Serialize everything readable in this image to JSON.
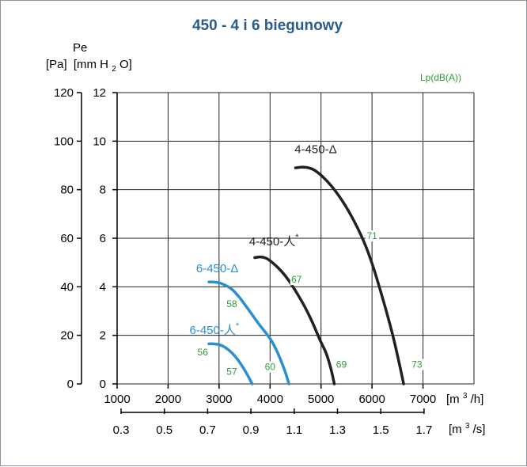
{
  "chart_data": {
    "type": "line",
    "title": "450 - 4 i 6 biegunowy",
    "y_axis_name": "Pe",
    "y_axis_units_pa": "[Pa]",
    "y_axis_units_mmh2o": "[mm H",
    "y_axis_units_mmh2o_sub": "2",
    "y_axis_units_mmh2o_end": "O]",
    "y_ticks_pa": [
      "0",
      "20",
      "40",
      "60",
      "80",
      "100",
      "120"
    ],
    "y_ticks_mm": [
      "0",
      "2",
      "4",
      "6",
      "8",
      "10",
      "12"
    ],
    "ylim_pa": [
      0,
      120
    ],
    "x_ticks_m3h": [
      "1000",
      "2000",
      "3000",
      "4000",
      "5000",
      "6000",
      "7000"
    ],
    "xlim_m3h": [
      1000,
      8000
    ],
    "x_unit_m3h": "[m",
    "x_unit_m3h_sup": "3",
    "x_unit_m3h_end": "/h]",
    "x_ticks_m3s": [
      "0.3",
      "0.5",
      "0.7",
      "0.9",
      "1.1",
      "1.3",
      "1.5",
      "1.7"
    ],
    "x_unit_m3s": "[m",
    "x_unit_m3s_sup": "3",
    "x_unit_m3s_end": "/s]",
    "lp_label": "Lp(dB(A))",
    "grid": true,
    "series": [
      {
        "name": "4-450-Δ",
        "color": "#231f20",
        "points": [
          [
            4500,
            89
          ],
          [
            4700,
            89.5
          ],
          [
            4900,
            88
          ],
          [
            5200,
            82
          ],
          [
            5500,
            73
          ],
          [
            5800,
            61
          ],
          [
            6000,
            50
          ],
          [
            6200,
            36
          ],
          [
            6400,
            21
          ],
          [
            6550,
            7
          ],
          [
            6620,
            0
          ]
        ],
        "label_x": 4480,
        "label_y": 95,
        "superscript": ""
      },
      {
        "name": "4-450-人",
        "color": "#231f20",
        "points": [
          [
            3700,
            52
          ],
          [
            3850,
            52.5
          ],
          [
            4000,
            51
          ],
          [
            4300,
            45
          ],
          [
            4600,
            35
          ],
          [
            4800,
            27
          ],
          [
            5000,
            17
          ],
          [
            5100,
            13
          ],
          [
            5200,
            6
          ],
          [
            5260,
            0
          ]
        ],
        "label_x": 3590,
        "label_y": 57,
        "superscript": "*"
      },
      {
        "name": "6-450-Δ",
        "color": "#2a8fce",
        "points": [
          [
            2800,
            42
          ],
          [
            2950,
            42
          ],
          [
            3100,
            41
          ],
          [
            3300,
            38.5
          ],
          [
            3600,
            30
          ],
          [
            3800,
            24
          ],
          [
            4000,
            19
          ],
          [
            4150,
            13
          ],
          [
            4300,
            5
          ],
          [
            4370,
            0
          ]
        ],
        "label_x": 2550,
        "label_y": 46,
        "superscript": ""
      },
      {
        "name": "6-450-人",
        "color": "#2a8fce",
        "points": [
          [
            2800,
            16.5
          ],
          [
            2950,
            16.5
          ],
          [
            3100,
            15.5
          ],
          [
            3300,
            12
          ],
          [
            3500,
            6
          ],
          [
            3650,
            0
          ]
        ],
        "label_x": 2420,
        "label_y": 20.5,
        "superscript": "*"
      }
    ],
    "lp_annotations": [
      {
        "text": "71",
        "x": 6000,
        "y": 60
      },
      {
        "text": "67",
        "x": 4520,
        "y": 42
      },
      {
        "text": "58",
        "x": 3250,
        "y": 32
      },
      {
        "text": "56",
        "x": 2680,
        "y": 12
      },
      {
        "text": "57",
        "x": 3250,
        "y": 4
      },
      {
        "text": "60",
        "x": 4000,
        "y": 6
      },
      {
        "text": "69",
        "x": 5400,
        "y": 7
      },
      {
        "text": "73",
        "x": 6880,
        "y": 7
      }
    ]
  }
}
